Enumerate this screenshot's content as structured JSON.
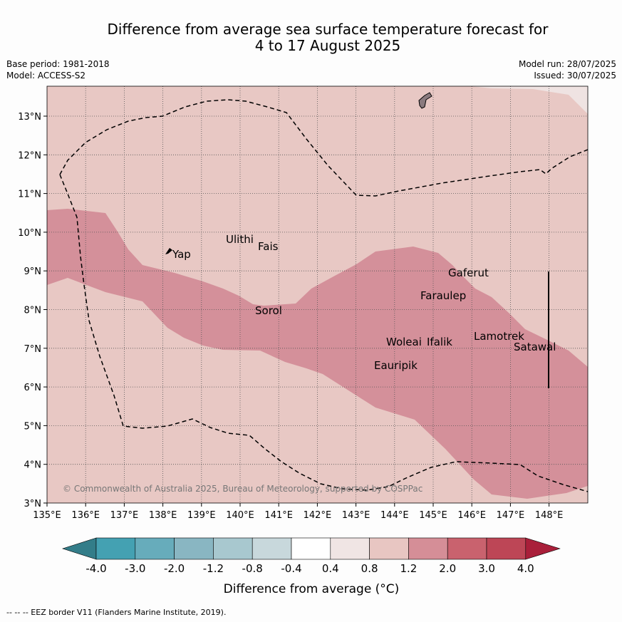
{
  "header": {
    "title_line1": "Difference from average sea surface temperature forecast for",
    "title_line2": "4 to 17 August 2025",
    "base_period": "Base period: 1981-2018",
    "model": "Model: ACCESS-S2",
    "model_run": "Model run: 28/07/2025",
    "issued": "Issued: 30/07/2025"
  },
  "map": {
    "x_ticks": [
      "135°E",
      "136°E",
      "137°E",
      "138°E",
      "139°E",
      "140°E",
      "141°E",
      "142°E",
      "143°E",
      "144°E",
      "145°E",
      "146°E",
      "147°E",
      "148°E"
    ],
    "y_ticks": [
      "13°N",
      "12°N",
      "11°N",
      "10°N",
      "9°N",
      "8°N",
      "7°N",
      "6°N",
      "5°N",
      "4°N",
      "3°N"
    ],
    "copyright": "© Commonwealth of Australia 2025, Bureau of Meteorology, supported by COSPPac",
    "places": [
      "Yap",
      "Ulithi",
      "Fais",
      "Sorol",
      "Gaferut",
      "Faraulep",
      "Woleai",
      "Ifalik",
      "Lamotrek",
      "Satawal",
      "Eauripik"
    ],
    "fill_colors": {
      "0.8 to 1.2": "#e8c8c4",
      "1.2 to 2.0": "#d4909a",
      "0.4 to 0.8": "#efe3e2"
    }
  },
  "colorbar": {
    "ticks": [
      "-4.0",
      "-3.0",
      "-2.0",
      "-1.2",
      "-0.8",
      "-0.4",
      "0.4",
      "0.8",
      "1.2",
      "2.0",
      "3.0",
      "4.0"
    ],
    "colors": [
      "#337d89",
      "#44a1b2",
      "#67acbb",
      "#89b6c2",
      "#a8c8cf",
      "#c8d8dc",
      "#ffffff",
      "#f0e5e4",
      "#e8c6c2",
      "#d58e97",
      "#c9626e",
      "#bd4656",
      "#a91f3a"
    ],
    "label": "Difference from average (°C)"
  },
  "footnote": "--  --  -- EEZ border V11 (Flanders Marine Institute, 2019)."
}
